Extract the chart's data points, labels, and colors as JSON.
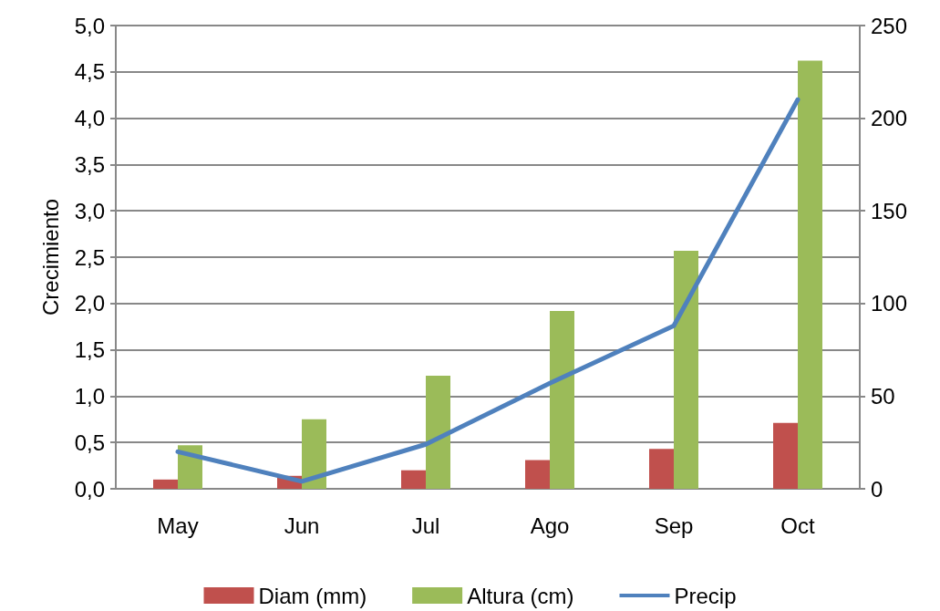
{
  "chart_data": {
    "type": "bar",
    "ylabel": "Crecimiento",
    "categories": [
      "May",
      "Jun",
      "Jul",
      "Ago",
      "Sep",
      "Oct"
    ],
    "series": [
      {
        "name": "Diam (mm)",
        "color": "#c0504d",
        "values": [
          0.1,
          0.14,
          0.2,
          0.31,
          0.43,
          0.71
        ]
      },
      {
        "name": "Altura (cm)",
        "color": "#9bbb59",
        "values": [
          0.47,
          0.75,
          1.22,
          1.92,
          2.57,
          4.62
        ]
      },
      {
        "name": "Precip",
        "type": "line",
        "axis": "y2",
        "color": "#4f81bd",
        "values": [
          20,
          4,
          24,
          57,
          88,
          210
        ]
      }
    ],
    "ylim": [
      0,
      5
    ],
    "yticks": [
      {
        "value": 0,
        "label": "0,0"
      },
      {
        "value": 0.5,
        "label": "0,5"
      },
      {
        "value": 1,
        "label": "1,0"
      },
      {
        "value": 1.5,
        "label": "1,5"
      },
      {
        "value": 2,
        "label": "2,0"
      },
      {
        "value": 2.5,
        "label": "2,5"
      },
      {
        "value": 3,
        "label": "3,0"
      },
      {
        "value": 3.5,
        "label": "3,5"
      },
      {
        "value": 4,
        "label": "4,0"
      },
      {
        "value": 4.5,
        "label": "4,5"
      },
      {
        "value": 5,
        "label": "5,0"
      }
    ],
    "y2lim": [
      0,
      250
    ],
    "y2ticks": [
      0,
      50,
      100,
      150,
      200,
      250
    ],
    "grid": "y",
    "legend": "bottom",
    "marker": "none",
    "line_style": "solid"
  }
}
